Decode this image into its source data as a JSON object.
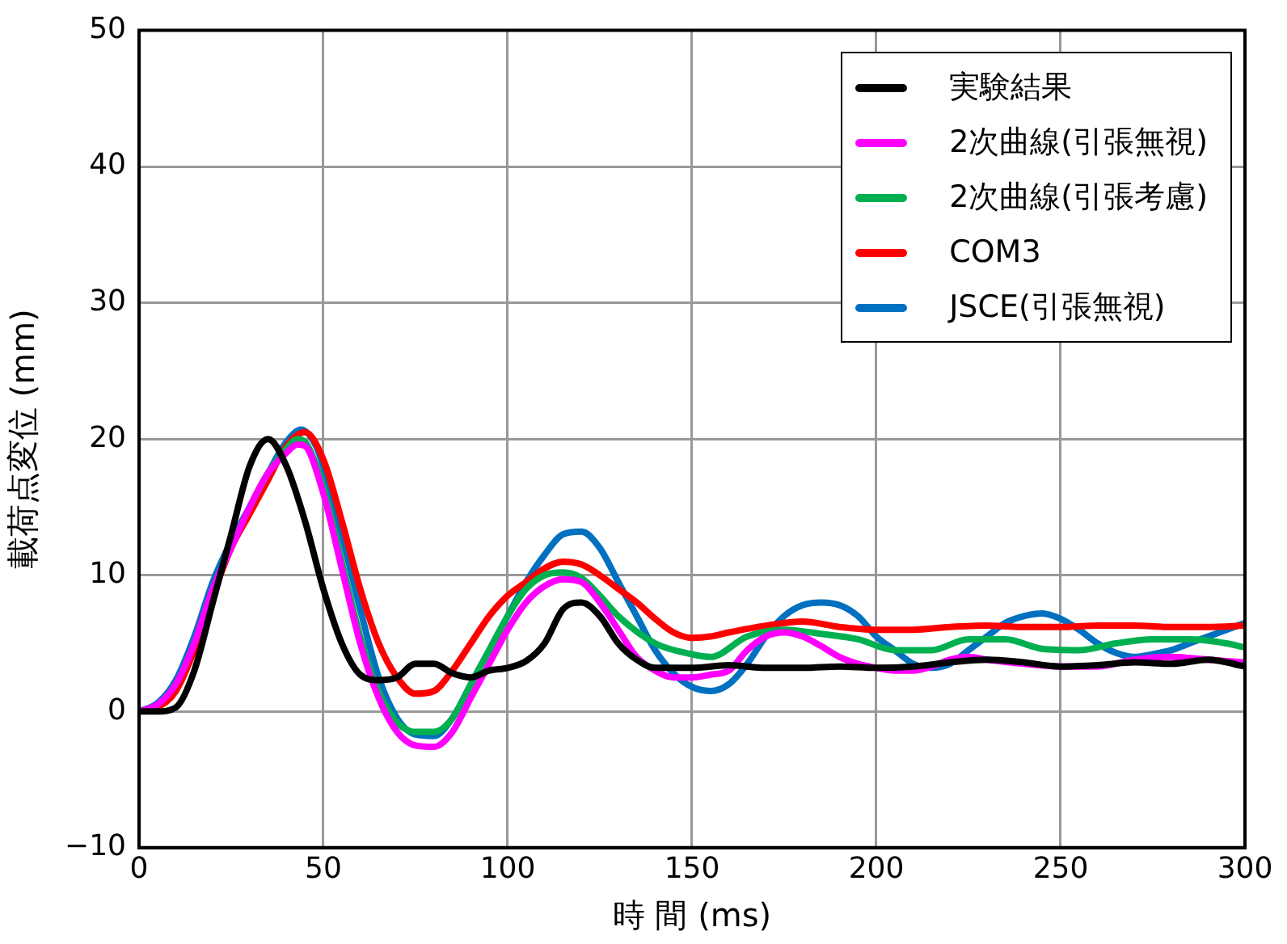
{
  "chart_data": {
    "type": "line",
    "xlabel": "時 間 (ms)",
    "ylabel": "載荷点変位 (mm)",
    "xlim": [
      0,
      300
    ],
    "xticks": [
      0,
      50,
      100,
      150,
      200,
      250,
      300
    ],
    "ylim": [
      -10,
      50
    ],
    "yticks": [
      -10,
      0,
      10,
      20,
      30,
      40,
      50
    ],
    "grid": true,
    "legend": "top right",
    "marker": "none",
    "line_style": "solid",
    "series": [
      {
        "name": "実験結果",
        "color": "#000000",
        "x": [
          0,
          5,
          10,
          15,
          20,
          25,
          30,
          35,
          40,
          45,
          50,
          55,
          60,
          65,
          70,
          75,
          80,
          85,
          90,
          95,
          100,
          105,
          110,
          115,
          120,
          125,
          130,
          135,
          140,
          145,
          150,
          160,
          170,
          180,
          190,
          200,
          210,
          220,
          230,
          240,
          250,
          260,
          270,
          280,
          290,
          300
        ],
        "values": [
          0,
          0,
          0.3,
          3,
          8,
          13,
          18,
          20,
          18,
          14,
          9,
          5,
          2.7,
          2.3,
          2.5,
          3.5,
          3.5,
          2.8,
          2.5,
          3,
          3.2,
          3.7,
          5,
          7.5,
          8,
          7,
          5,
          3.8,
          3.2,
          3.2,
          3.2,
          3.4,
          3.2,
          3.2,
          3.3,
          3.2,
          3.3,
          3.6,
          3.8,
          3.6,
          3.3,
          3.4,
          3.6,
          3.5,
          3.8,
          3.3
        ]
      },
      {
        "name": "2次曲線(引張無視)",
        "color": "#ff00ff",
        "x": [
          0,
          5,
          10,
          15,
          20,
          25,
          30,
          35,
          40,
          43,
          45,
          50,
          55,
          60,
          65,
          70,
          75,
          80,
          85,
          90,
          95,
          100,
          105,
          110,
          115,
          120,
          125,
          130,
          135,
          140,
          145,
          150,
          155,
          160,
          165,
          170,
          175,
          180,
          185,
          190,
          195,
          200,
          205,
          210,
          215,
          220,
          225,
          230,
          240,
          250,
          260,
          270,
          280,
          290,
          300
        ],
        "values": [
          0,
          0.5,
          2,
          5,
          9,
          12,
          15,
          17.5,
          19,
          19.6,
          19.5,
          16,
          10.5,
          5,
          1,
          -1.5,
          -2.5,
          -2.6,
          -1.5,
          1,
          3.5,
          6,
          8,
          9.2,
          9.7,
          9.5,
          8,
          6,
          4,
          3,
          2.5,
          2.5,
          2.7,
          3,
          4.5,
          5.5,
          5.8,
          5.5,
          4.8,
          4,
          3.5,
          3.2,
          3,
          3,
          3.3,
          3.8,
          4,
          3.8,
          3.5,
          3.3,
          3.3,
          3.8,
          4,
          3.8,
          3.6
        ]
      },
      {
        "name": "2次曲線(引張考慮)",
        "color": "#00b050",
        "x": [
          30,
          35,
          40,
          43,
          45,
          50,
          55,
          60,
          65,
          70,
          75,
          80,
          85,
          90,
          95,
          100,
          105,
          110,
          115,
          120,
          125,
          130,
          140,
          150,
          155,
          165,
          175,
          185,
          195,
          205,
          215,
          225,
          235,
          245,
          255,
          265,
          275,
          285,
          295,
          300
        ],
        "values": [
          15,
          17.5,
          19.3,
          20,
          19.8,
          16.5,
          11,
          5.5,
          1.5,
          -0.8,
          -1.5,
          -1.5,
          -0.5,
          2,
          4.5,
          7,
          9,
          10,
          10.2,
          9.8,
          8.5,
          7,
          5,
          4.2,
          4,
          5.5,
          6,
          5.7,
          5.3,
          4.5,
          4.5,
          5.3,
          5.3,
          4.6,
          4.5,
          5,
          5.3,
          5.3,
          5,
          4.7
        ]
      },
      {
        "name": "COM3",
        "color": "#ff0000",
        "x": [
          0,
          5,
          10,
          15,
          20,
          25,
          30,
          35,
          40,
          45,
          50,
          55,
          60,
          65,
          70,
          75,
          80,
          85,
          90,
          95,
          100,
          105,
          110,
          115,
          120,
          125,
          130,
          135,
          140,
          145,
          150,
          155,
          160,
          170,
          180,
          190,
          200,
          210,
          220,
          230,
          240,
          250,
          260,
          270,
          280,
          290,
          300
        ],
        "values": [
          0,
          0.3,
          1.5,
          4.5,
          8.5,
          12,
          14.5,
          17,
          19.5,
          20.5,
          18.5,
          14,
          9,
          5,
          2.5,
          1.3,
          1.5,
          3,
          5,
          7,
          8.5,
          9.5,
          10.5,
          11,
          10.8,
          10,
          9,
          8,
          6.8,
          5.8,
          5.4,
          5.5,
          5.8,
          6.3,
          6.6,
          6.2,
          6,
          6,
          6.2,
          6.3,
          6.2,
          6.2,
          6.3,
          6.3,
          6.2,
          6.2,
          6.3
        ]
      },
      {
        "name": "JSCE(引張無視)",
        "color": "#0070c0",
        "x": [
          0,
          5,
          10,
          15,
          20,
          25,
          30,
          35,
          40,
          44,
          48,
          50,
          55,
          60,
          65,
          70,
          75,
          80,
          85,
          90,
          95,
          100,
          105,
          110,
          115,
          120,
          125,
          130,
          135,
          140,
          145,
          150,
          155,
          160,
          165,
          170,
          175,
          180,
          185,
          190,
          195,
          200,
          205,
          210,
          215,
          220,
          225,
          230,
          235,
          240,
          245,
          250,
          255,
          260,
          265,
          270,
          275,
          280,
          285,
          290,
          295,
          300
        ],
        "values": [
          0,
          0.6,
          2.3,
          5.5,
          9.5,
          12.5,
          15,
          17.5,
          19.8,
          20.7,
          19.5,
          18,
          13,
          7.5,
          2.5,
          -0.5,
          -1.7,
          -1.8,
          -0.5,
          2,
          4.5,
          7,
          9.5,
          11.5,
          13,
          13.2,
          12,
          9.5,
          7,
          4.5,
          2.8,
          1.8,
          1.5,
          2,
          3.5,
          5.5,
          7,
          7.8,
          8,
          7.8,
          7,
          5.5,
          4.5,
          3.5,
          3.2,
          3.5,
          4.5,
          5.5,
          6.5,
          7,
          7.2,
          6.8,
          6,
          5,
          4.3,
          4,
          4.2,
          4.5,
          5,
          5.5,
          6,
          6.5
        ]
      }
    ]
  }
}
